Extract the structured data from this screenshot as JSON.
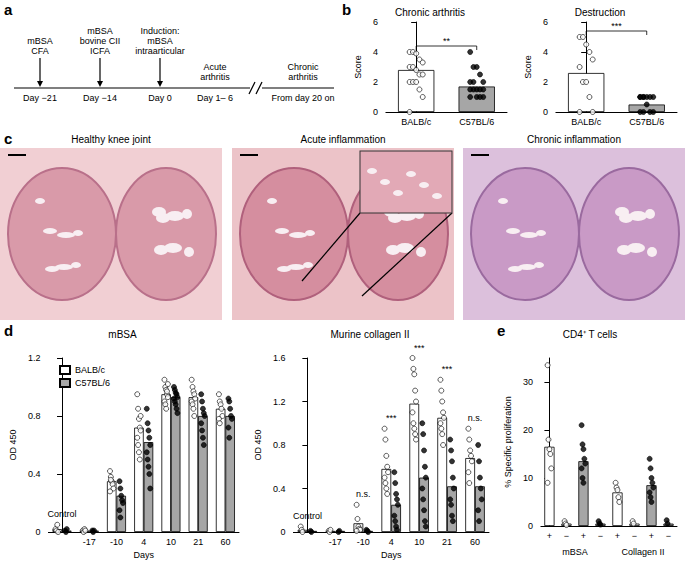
{
  "panel_labels": [
    "a",
    "b",
    "c",
    "d",
    "e"
  ],
  "timeline": {
    "events": [
      {
        "text": [
          "mBSA",
          "CFA"
        ],
        "day": "Day −21"
      },
      {
        "text": [
          "mBSA",
          "bovine CII",
          "ICFA"
        ],
        "day": "Day −14"
      },
      {
        "text": [
          "Induction:",
          "mBSA",
          "intraarticular"
        ],
        "day": "Day 0"
      }
    ],
    "phases": [
      {
        "text": [
          "Acute",
          "arthritis"
        ],
        "day": "Day 1– 6"
      },
      {
        "text": [
          "Chronic",
          "arthritis"
        ],
        "day": "From day 20 on"
      }
    ]
  },
  "histology": [
    "Healthy knee joint",
    "Acute inflammation",
    "Chronic inflammation"
  ],
  "chart_data": [
    {
      "type": "bar",
      "title": "Chronic arthritis",
      "y_label": "Score",
      "categories": [
        "BALB/c",
        "C57BL/6"
      ],
      "values": [
        2.8,
        1.7
      ],
      "colors": [
        "#ffffff",
        "#a6a6a6"
      ],
      "marker": "circle",
      "point_colors": [
        "#ffffff",
        "#000000"
      ],
      "points": [
        [
          4,
          4,
          3.9,
          3.5,
          3.3,
          3,
          3,
          2.8,
          2.5,
          2.5,
          2,
          2,
          2,
          1.5,
          1,
          0
        ],
        [
          4,
          3,
          3,
          2.5,
          2,
          2,
          2,
          1.5,
          1.5,
          1.5,
          1.5,
          1.5,
          1,
          1,
          1,
          1
        ]
      ],
      "ylim": [
        0,
        6
      ],
      "yticks": [
        0,
        2,
        4,
        6
      ],
      "annotations": [
        {
          "text": "**",
          "index": [
            0,
            1
          ]
        }
      ]
    },
    {
      "type": "bar",
      "title": "Destruction",
      "y_label": "Score",
      "categories": [
        "BALB/c",
        "C57BL/6"
      ],
      "values": [
        2.6,
        0.5
      ],
      "colors": [
        "#ffffff",
        "#a6a6a6"
      ],
      "marker": "circle",
      "point_colors": [
        "#ffffff",
        "#000000"
      ],
      "points": [
        [
          5,
          5,
          4.5,
          4,
          3.5,
          3,
          2,
          2,
          1,
          0,
          0
        ],
        [
          1,
          1,
          1,
          1,
          1,
          1,
          1,
          0.5,
          0,
          0,
          0,
          0
        ]
      ],
      "ylim": [
        0,
        6
      ],
      "yticks": [
        0,
        2,
        4,
        6
      ],
      "annotations": [
        {
          "text": "***",
          "index": [
            0,
            1
          ]
        }
      ]
    },
    {
      "type": "bar",
      "title": "mBSA",
      "x_label": "Days",
      "y_label": "OD 450",
      "categories": [
        null,
        "-17",
        "-10",
        "4",
        "10",
        "21",
        "60"
      ],
      "marker": "circle",
      "legend": "top-left",
      "series": [
        {
          "name": "BALB/c",
          "color": "#ffffff",
          "point_color": "#ffffff",
          "values": [
            0.02,
            0.01,
            0.35,
            0.72,
            0.95,
            0.93,
            0.85
          ],
          "points": [
            [
              0.02,
              0.01,
              0.05,
              0
            ],
            [
              0.01,
              0,
              0.02,
              0.01
            ],
            [
              0.42,
              0.38,
              0.35,
              0.33,
              0.3,
              0.28,
              0.36
            ],
            [
              0.95,
              0.85,
              0.78,
              0.72,
              0.7,
              0.65,
              0.6,
              0.55,
              0.5,
              0.8
            ],
            [
              1.05,
              1,
              0.98,
              0.95,
              0.93,
              0.9,
              0.88,
              0.85,
              0.97,
              1.02
            ],
            [
              1.05,
              1,
              0.97,
              0.95,
              0.92,
              0.9,
              0.88,
              0.85,
              0.8
            ],
            [
              0.95,
              0.9,
              0.88,
              0.85,
              0.8,
              0.78,
              0.75
            ]
          ]
        },
        {
          "name": "C57BL/6",
          "color": "#a6a6a6",
          "point_color": "#000000",
          "values": [
            0.01,
            0.01,
            0.25,
            0.62,
            0.93,
            0.8,
            0.8
          ],
          "points": [
            [
              0.01,
              0,
              0.02
            ],
            [
              0.01,
              0,
              0.01
            ],
            [
              0.35,
              0.3,
              0.25,
              0.22,
              0.2,
              0.15,
              0.1
            ],
            [
              0.85,
              0.75,
              0.7,
              0.65,
              0.6,
              0.55,
              0.5,
              0.45,
              0.4,
              0.3
            ],
            [
              1,
              0.98,
              0.96,
              0.95,
              0.93,
              0.92,
              0.9,
              0.88,
              0.85,
              0.82
            ],
            [
              0.95,
              0.9,
              0.85,
              0.82,
              0.8,
              0.75,
              0.7,
              0.65,
              0.6
            ],
            [
              0.92,
              0.9,
              0.85,
              0.8,
              0.78,
              0.72,
              0.65
            ]
          ]
        }
      ],
      "ylim": [
        0,
        1.2
      ],
      "yticks": [
        0,
        0.4,
        0.8,
        1.2
      ],
      "annotations": [
        {
          "text": "Control",
          "index": 0
        }
      ]
    },
    {
      "type": "bar",
      "title": "Murine collagen II",
      "x_label": "Days",
      "y_label": "OD 450",
      "categories": [
        null,
        "-17",
        "-10",
        "4",
        "10",
        "21",
        "60"
      ],
      "marker": "circle",
      "series": [
        {
          "name": "BALB/c",
          "color": "#ffffff",
          "point_color": "#ffffff",
          "values": [
            0.02,
            0.01,
            0.08,
            0.58,
            1.18,
            1.05,
            0.68
          ],
          "points": [
            [
              0.05,
              0.02,
              0
            ],
            [
              0.01,
              0,
              0.02
            ],
            [
              0.25,
              0.12,
              0.05,
              0.03,
              0.02,
              0.01
            ],
            [
              0.95,
              0.85,
              0.7,
              0.6,
              0.55,
              0.5,
              0.45,
              0.4,
              0.35
            ],
            [
              1.6,
              1.5,
              1.45,
              1.3,
              1.2,
              1.1,
              1,
              0.95,
              0.9,
              0.85
            ],
            [
              1.4,
              1.3,
              1.2,
              1.1,
              1.05,
              1,
              0.95,
              0.9,
              0.8
            ],
            [
              0.95,
              0.85,
              0.75,
              0.7,
              0.65,
              0.55,
              0.45
            ]
          ]
        },
        {
          "name": "C57BL/6",
          "color": "#a6a6a6",
          "point_color": "#000000",
          "values": [
            0.01,
            0.01,
            0.01,
            0.25,
            0.5,
            0.42,
            0.42
          ],
          "points": [
            [
              0.01,
              0
            ],
            [
              0,
              0.01
            ],
            [
              0.02,
              0.01,
              0
            ],
            [
              0.55,
              0.45,
              0.35,
              0.3,
              0.25,
              0.15,
              0.1,
              0.05,
              0.02
            ],
            [
              1,
              0.9,
              0.75,
              0.6,
              0.5,
              0.4,
              0.3,
              0.2,
              0.1,
              0.05
            ],
            [
              0.85,
              0.75,
              0.65,
              0.5,
              0.4,
              0.3,
              0.25,
              0.15,
              0.1
            ],
            [
              0.8,
              0.65,
              0.5,
              0.4,
              0.3,
              0.2,
              0.1
            ]
          ]
        }
      ],
      "ylim": [
        0,
        1.6
      ],
      "yticks": [
        0,
        0.4,
        0.8,
        1.2,
        1.6
      ],
      "annotations": [
        {
          "text": "Control",
          "index": 0
        },
        {
          "text": "n.s.",
          "index": 2
        },
        {
          "text": "***",
          "index": 3
        },
        {
          "text": "***",
          "index": 4
        },
        {
          "text": "***",
          "index": 5
        },
        {
          "text": "n.s.",
          "index": 6
        }
      ]
    },
    {
      "type": "bar",
      "title": "CD4⁺ T cells",
      "y_label": "% Specific proliferation",
      "categories": [
        "+",
        "−",
        "+",
        "−",
        "+",
        "−",
        "+",
        "−"
      ],
      "values": [
        16.5,
        0.5,
        13.5,
        0.5,
        7,
        0.5,
        8.5,
        0.5
      ],
      "colors": [
        "#ffffff",
        "#ffffff",
        "#a6a6a6",
        "#a6a6a6",
        "#ffffff",
        "#ffffff",
        "#a6a6a6",
        "#a6a6a6"
      ],
      "marker": "circle",
      "point_colors": [
        "#ffffff",
        "#ffffff",
        "#000000",
        "#000000",
        "#ffffff",
        "#ffffff",
        "#000000",
        "#000000"
      ],
      "points": [
        [
          33.5,
          18,
          16,
          15,
          12,
          9
        ],
        [
          1,
          0.5,
          0.2
        ],
        [
          21,
          17,
          16,
          14,
          13,
          12,
          10,
          9
        ],
        [
          1,
          0.5,
          0.3
        ],
        [
          9,
          8,
          7.5,
          6,
          5
        ],
        [
          1,
          0.5
        ],
        [
          14,
          12,
          10,
          9,
          8,
          7,
          6,
          5
        ],
        [
          1.2,
          0.5
        ]
      ],
      "groups": [
        {
          "text": "mBSA",
          "from": 0,
          "to": 3
        },
        {
          "text": "Collagen II",
          "from": 4,
          "to": 7
        }
      ],
      "ylim": [
        0,
        35
      ],
      "yticks": [
        0,
        10,
        20,
        30
      ]
    }
  ]
}
